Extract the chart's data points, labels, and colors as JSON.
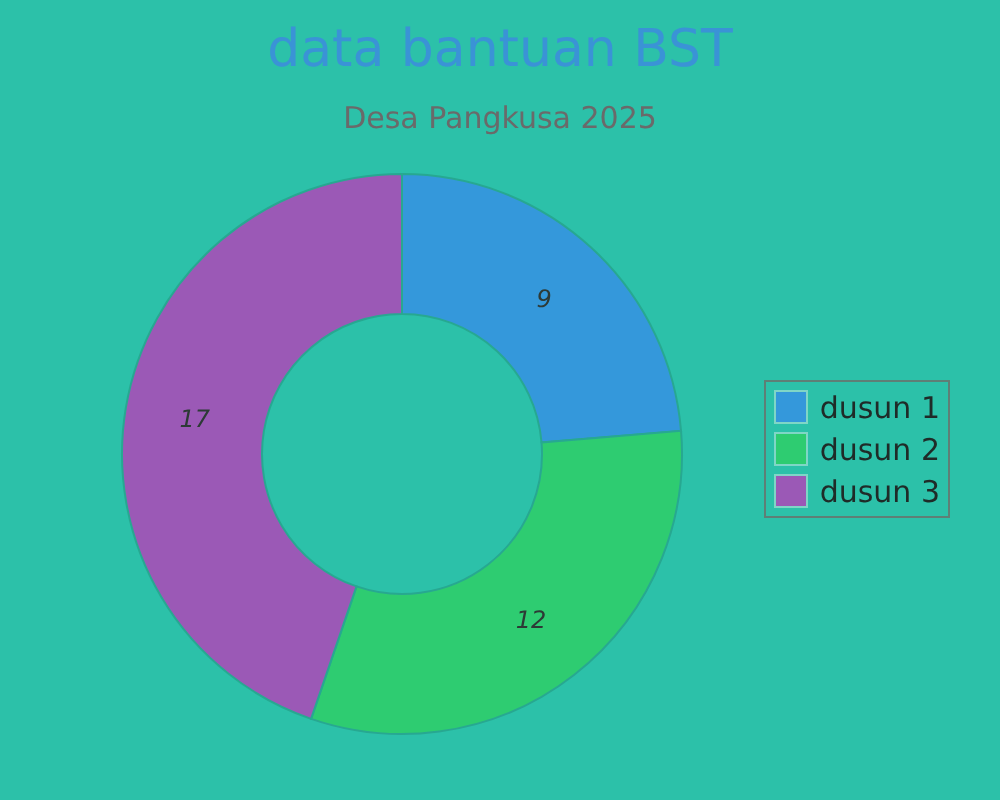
{
  "chart_data": {
    "type": "donut",
    "title": "data bantuan BST",
    "subtitle": "Desa Pangkusa 2025",
    "categories": [
      "dusun 1",
      "dusun 2",
      "dusun 3"
    ],
    "values": [
      9,
      12,
      17
    ],
    "colors": [
      "#3498db",
      "#2ecc71",
      "#9b59b6"
    ],
    "data_labels": true,
    "legend": "right"
  }
}
